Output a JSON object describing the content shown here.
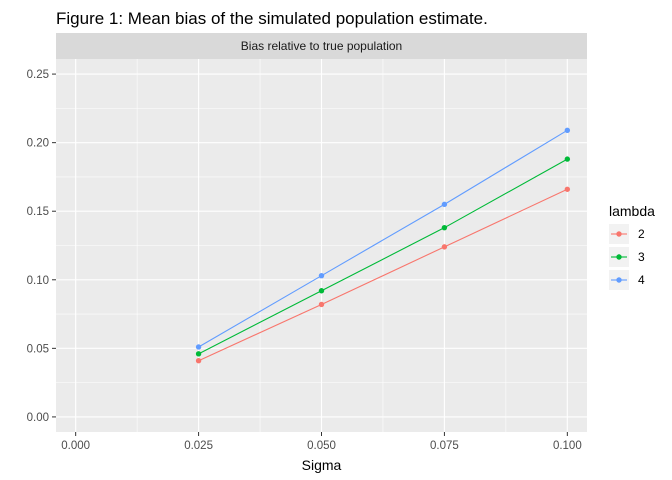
{
  "chart_data": {
    "type": "line",
    "title": "Figure 1: Mean bias of the simulated population estimate.",
    "facet_label": "Bias relative to true population",
    "xlabel": "Sigma",
    "ylabel": "",
    "x": [
      0.025,
      0.05,
      0.075,
      0.1
    ],
    "xlim": [
      -0.004,
      0.104
    ],
    "ylim": [
      -0.011,
      0.261
    ],
    "x_ticks": [
      0.0,
      0.025,
      0.05,
      0.075,
      0.1
    ],
    "x_tick_labels": [
      "0.000",
      "0.025",
      "0.050",
      "0.075",
      "0.100"
    ],
    "y_ticks": [
      0.0,
      0.05,
      0.1,
      0.15,
      0.2,
      0.25
    ],
    "y_tick_labels": [
      "0.00",
      "0.05",
      "0.10",
      "0.15",
      "0.20",
      "0.25"
    ],
    "legend_title": "lambda",
    "legend_position": "right",
    "grid": true,
    "background": "#EBEBEB",
    "series": [
      {
        "name": "2",
        "color": "#F8766D",
        "values": [
          0.041,
          0.082,
          0.124,
          0.166
        ]
      },
      {
        "name": "3",
        "color": "#00BA38",
        "values": [
          0.046,
          0.092,
          0.138,
          0.188
        ]
      },
      {
        "name": "4",
        "color": "#619CFF",
        "values": [
          0.051,
          0.103,
          0.155,
          0.209
        ]
      }
    ]
  }
}
